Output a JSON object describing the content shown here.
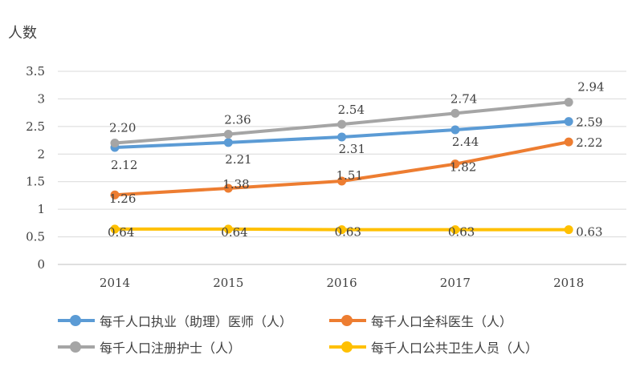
{
  "chart_data": {
    "type": "line",
    "ylabel": "人数",
    "categories": [
      "2014",
      "2015",
      "2016",
      "2017",
      "2018"
    ],
    "ylim": [
      0,
      3.5
    ],
    "yticks": [
      "0",
      "0.5",
      "1",
      "1.5",
      "2",
      "2.5",
      "3",
      "3.5"
    ],
    "grid": true,
    "legend_position": "bottom",
    "series": [
      {
        "name": "每千人口执业（助理）医师（人）",
        "color": "#5B9BD5",
        "values": [
          2.12,
          2.21,
          2.31,
          2.44,
          2.59
        ],
        "labels": [
          "2.12",
          "2.21",
          "2.31",
          "2.44",
          "2.59"
        ]
      },
      {
        "name": "每千人口全科医生（人）",
        "color": "#ED7D31",
        "values": [
          1.26,
          1.38,
          1.51,
          1.82,
          2.22
        ],
        "labels": [
          "1.26",
          "1.38",
          "1.51",
          "1.82",
          "2.22"
        ]
      },
      {
        "name": "每千人口注册护士（人）",
        "color": "#A5A5A5",
        "values": [
          2.2,
          2.36,
          2.54,
          2.74,
          2.94
        ],
        "labels": [
          "2.20",
          "2.36",
          "2.54",
          "2.74",
          "2.94"
        ]
      },
      {
        "name": "每千人口公共卫生人员（人）",
        "color": "#FFC000",
        "values": [
          0.64,
          0.64,
          0.63,
          0.63,
          0.63
        ],
        "labels": [
          "0.64",
          "0.64",
          "0.63",
          "0.63",
          "0.63"
        ]
      }
    ]
  }
}
